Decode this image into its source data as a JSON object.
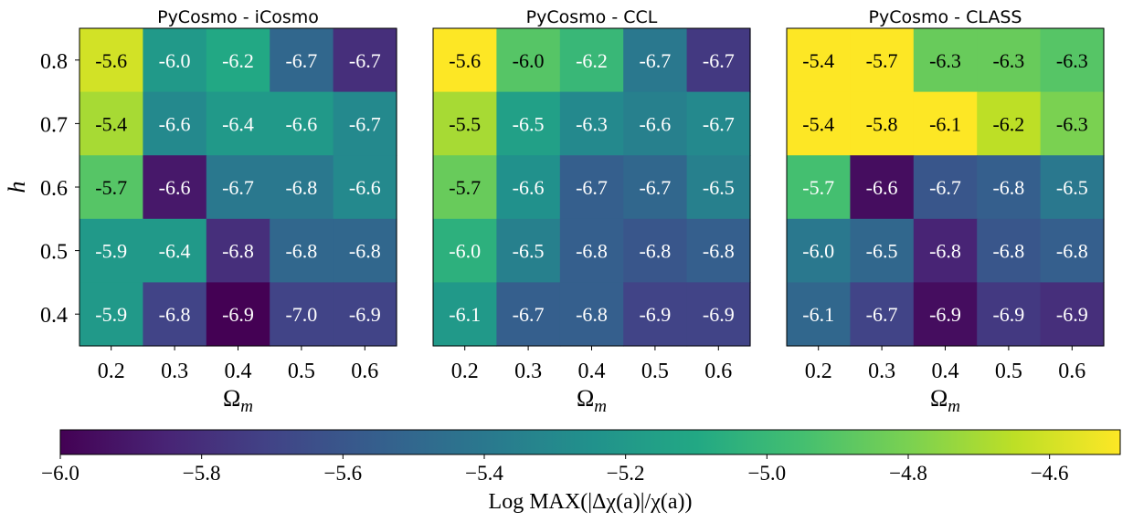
{
  "chart_data": {
    "type": "heatmap",
    "colormap": "viridis",
    "panels": [
      {
        "title": "PyCosmo - iCosmo",
        "xlabel": "Ωm",
        "ylabel": "h",
        "x_categories": [
          "0.2",
          "0.3",
          "0.4",
          "0.5",
          "0.6"
        ],
        "y_categories": [
          "0.8",
          "0.7",
          "0.6",
          "0.5",
          "0.4"
        ],
        "values": [
          [
            -4.6,
            -5.2,
            -5.1,
            -5.5,
            -5.8
          ],
          [
            -4.7,
            -5.3,
            -5.2,
            -5.2,
            -5.3
          ],
          [
            -4.9,
            -5.9,
            -5.4,
            -5.4,
            -5.3
          ],
          [
            -5.2,
            -5.2,
            -5.8,
            -5.5,
            -5.5
          ],
          [
            -5.2,
            -5.7,
            -6.0,
            -5.7,
            -5.7
          ]
        ],
        "labels": [
          [
            "-5.6",
            "-6.0",
            "-6.2",
            "-6.7",
            "-6.7"
          ],
          [
            "-5.4",
            "-6.6",
            "-6.4",
            "-6.6",
            "-6.7"
          ],
          [
            "-5.7",
            "-6.6",
            "-6.7",
            "-6.8",
            "-6.6"
          ],
          [
            "-5.9",
            "-6.4",
            "-6.8",
            "-6.8",
            "-6.8"
          ],
          [
            "-5.9",
            "-6.8",
            "-6.9",
            "-7.0",
            "-6.9"
          ]
        ]
      },
      {
        "title": "PyCosmo - CCL",
        "xlabel": "Ωm",
        "ylabel": "",
        "x_categories": [
          "0.2",
          "0.3",
          "0.4",
          "0.5",
          "0.6"
        ],
        "y_categories": [
          "0.8",
          "0.7",
          "0.6",
          "0.5",
          "0.4"
        ],
        "values": [
          [
            -4.5,
            -4.9,
            -5.0,
            -5.4,
            -5.75
          ],
          [
            -4.7,
            -5.15,
            -5.3,
            -5.35,
            -5.3
          ],
          [
            -4.85,
            -5.25,
            -5.55,
            -5.5,
            -5.35
          ],
          [
            -5.05,
            -5.35,
            -5.55,
            -5.6,
            -5.55
          ],
          [
            -5.2,
            -5.55,
            -5.55,
            -5.7,
            -5.7
          ]
        ],
        "labels": [
          [
            "-5.6",
            "-6.0",
            "-6.2",
            "-6.7",
            "-6.7"
          ],
          [
            "-5.5",
            "-6.5",
            "-6.3",
            "-6.6",
            "-6.7"
          ],
          [
            "-5.7",
            "-6.6",
            "-6.7",
            "-6.7",
            "-6.5"
          ],
          [
            "-6.0",
            "-6.5",
            "-6.8",
            "-6.8",
            "-6.8"
          ],
          [
            "-6.1",
            "-6.7",
            "-6.8",
            "-6.9",
            "-6.9"
          ]
        ]
      },
      {
        "title": "PyCosmo - CLASS",
        "xlabel": "Ωm",
        "ylabel": "",
        "x_categories": [
          "0.2",
          "0.3",
          "0.4",
          "0.5",
          "0.6"
        ],
        "y_categories": [
          "0.8",
          "0.7",
          "0.6",
          "0.5",
          "0.4"
        ],
        "values": [
          [
            -4.5,
            -4.5,
            -4.85,
            -4.85,
            -4.9
          ],
          [
            -4.5,
            -4.5,
            -4.5,
            -4.65,
            -4.8
          ],
          [
            -4.95,
            -5.95,
            -5.6,
            -5.55,
            -5.4
          ],
          [
            -5.4,
            -5.5,
            -5.85,
            -5.6,
            -5.55
          ],
          [
            -5.5,
            -5.7,
            -5.95,
            -5.75,
            -5.8
          ]
        ],
        "labels": [
          [
            "-5.4",
            "-5.7",
            "-6.3",
            "-6.3",
            "-6.3"
          ],
          [
            "-5.4",
            "-5.8",
            "-6.1",
            "-6.2",
            "-6.3"
          ],
          [
            "-5.7",
            "-6.6",
            "-6.7",
            "-6.8",
            "-6.5"
          ],
          [
            "-6.0",
            "-6.5",
            "-6.8",
            "-6.8",
            "-6.8"
          ],
          [
            "-6.1",
            "-6.7",
            "-6.9",
            "-6.9",
            "-6.9"
          ]
        ]
      }
    ],
    "colorbar": {
      "orientation": "horizontal",
      "range": [
        -6.0,
        -4.5
      ],
      "ticks": [
        -6.0,
        -5.8,
        -5.6,
        -5.4,
        -5.2,
        -5.0,
        -4.8,
        -4.6
      ],
      "tick_labels": [
        "−6.0",
        "−5.8",
        "−5.6",
        "−5.4",
        "−5.2",
        "−5.0",
        "−4.8",
        "−4.6"
      ],
      "label": "Log MAX(|Δχ(a)|/χ(a))"
    }
  }
}
